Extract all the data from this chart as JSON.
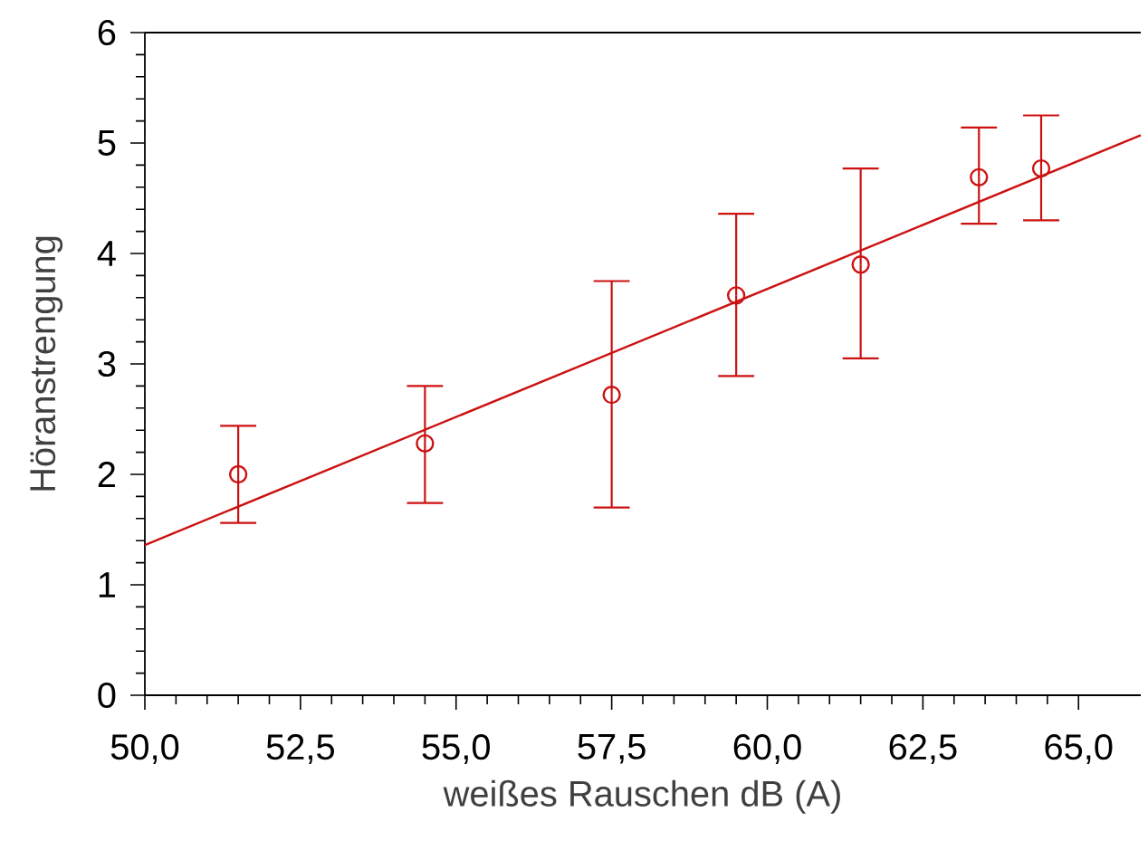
{
  "chart_data": {
    "type": "scatter",
    "xlabel": "weißes Rauschen dB (A)",
    "ylabel": "Höranstrengung",
    "series": [
      {
        "color": "#cc1111",
        "marker": "circle",
        "x": [
          51.5,
          54.5,
          57.5,
          59.5,
          61.5,
          63.4,
          64.4
        ],
        "values": [
          2.0,
          2.28,
          2.72,
          3.62,
          3.9,
          4.69,
          4.77
        ],
        "errors": [
          [
            1.56,
            2.44
          ],
          [
            1.74,
            2.8
          ],
          [
            1.7,
            3.75
          ],
          [
            2.89,
            4.36
          ],
          [
            3.05,
            4.77
          ],
          [
            4.27,
            5.14
          ],
          [
            4.3,
            5.25
          ]
        ]
      },
      {
        "type": "line",
        "color": "#cc1111",
        "x": [
          50,
          66
        ],
        "values": [
          1.36,
          5.07
        ]
      }
    ],
    "xlim": [
      50,
      66
    ],
    "ylim": [
      0,
      6
    ],
    "xticks": [
      {
        "value": 50,
        "label": "50,0"
      },
      {
        "value": 52.5,
        "label": "52,5"
      },
      {
        "value": 55,
        "label": "55,0"
      },
      {
        "value": 57.5,
        "label": "57,5"
      },
      {
        "value": 60,
        "label": "60,0"
      },
      {
        "value": 62.5,
        "label": "62,5"
      },
      {
        "value": 65,
        "label": "65,0"
      }
    ],
    "yticks": [
      0,
      1,
      2,
      3,
      4,
      5,
      6
    ],
    "grid": false
  }
}
